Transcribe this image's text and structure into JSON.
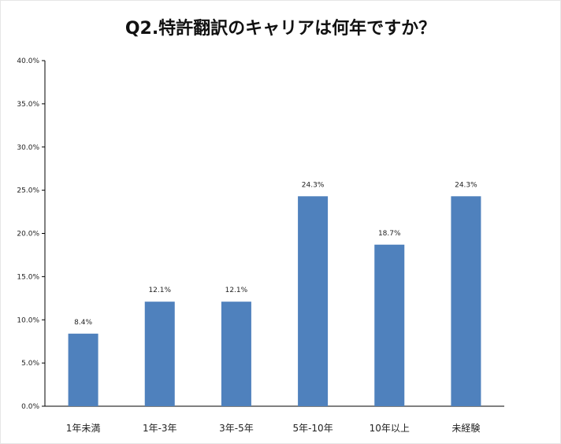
{
  "chart_data": {
    "type": "bar",
    "title": "Q2.特許翻訳のキャリアは何年ですか？",
    "xlabel": "",
    "ylabel": "",
    "categories": [
      "1年未満",
      "1年-3年",
      "3年-5年",
      "5年-10年",
      "10年以上",
      "未経験"
    ],
    "values": [
      8.4,
      12.1,
      12.1,
      24.3,
      18.7,
      24.3
    ],
    "data_labels": [
      "8.4%",
      "12.1%",
      "12.1%",
      "24.3%",
      "18.7%",
      "24.3%"
    ],
    "ylim": [
      0,
      40
    ],
    "yticks": [
      0,
      5,
      10,
      15,
      20,
      25,
      30,
      35,
      40
    ],
    "ytick_labels": [
      "0.0%",
      "5.0%",
      "10.0%",
      "15.0%",
      "20.0%",
      "25.0%",
      "30.0%",
      "35.0%",
      "40.0%"
    ],
    "grid": false,
    "legend": "none",
    "bar_color": "#4F81BD"
  }
}
